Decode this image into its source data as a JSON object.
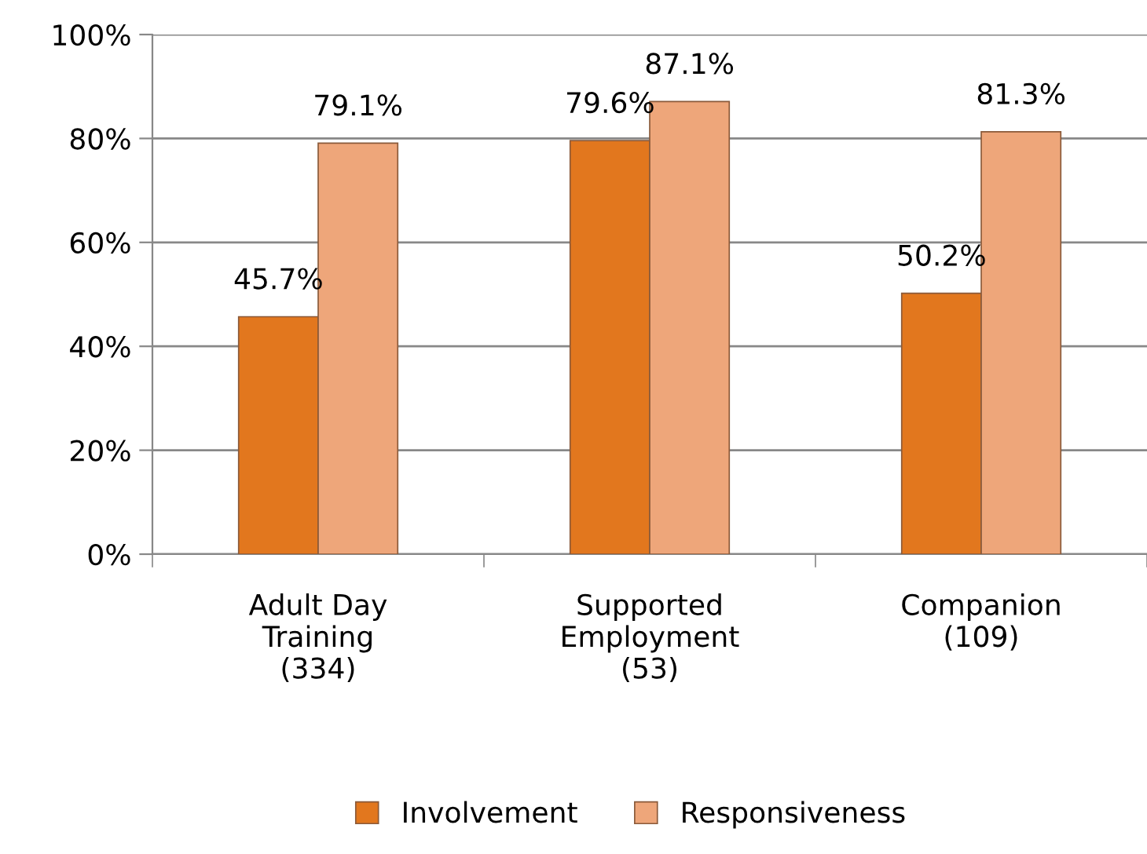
{
  "chart_data": {
    "type": "bar",
    "categories": [
      "Adult Day\nTraining\n(334)",
      "Supported\nEmployment\n(53)",
      "Companion\n(109)"
    ],
    "series": [
      {
        "name": "Involvement",
        "color": "#e2771e",
        "values": [
          45.7,
          79.6,
          50.2
        ],
        "value_labels": [
          "45.7%",
          "79.6%",
          "50.2%"
        ]
      },
      {
        "name": "Responsiveness",
        "color": "#eea67a",
        "values": [
          79.1,
          87.1,
          81.3
        ],
        "value_labels": [
          "79.1%",
          "87.1%",
          "81.3%"
        ]
      }
    ],
    "ylim": [
      0,
      100
    ],
    "yticks": [
      {
        "value": 0,
        "label": "0%"
      },
      {
        "value": 20,
        "label": "20%"
      },
      {
        "value": 40,
        "label": "40%"
      },
      {
        "value": 60,
        "label": "60%"
      },
      {
        "value": 80,
        "label": "80%"
      },
      {
        "value": 100,
        "label": "100%"
      }
    ],
    "grid": "y",
    "legend": "bottom"
  }
}
